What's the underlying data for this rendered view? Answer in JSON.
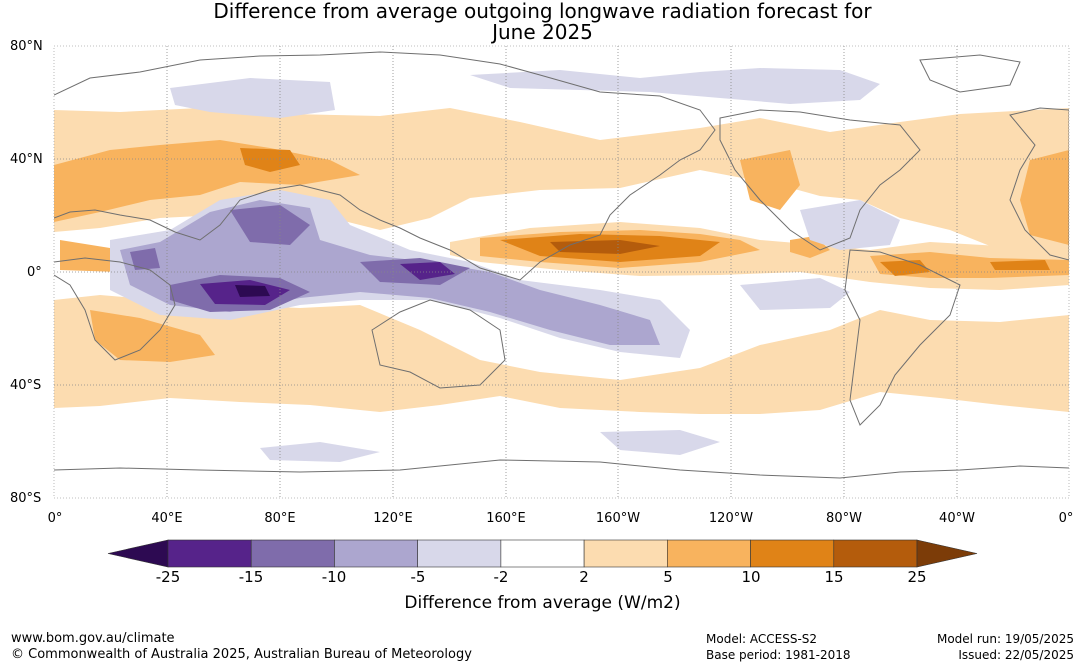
{
  "title_line1": "Difference from average outgoing longwave radiation forecast for",
  "title_line2": "June 2025",
  "lat_labels": [
    "80°N",
    "40°N",
    "0°",
    "40°S",
    "80°S"
  ],
  "lon_labels": [
    "0°",
    "40°E",
    "80°E",
    "120°E",
    "160°E",
    "160°W",
    "120°W",
    "80°W",
    "40°W",
    "0°"
  ],
  "colorbar": {
    "ticks": [
      "-25",
      "-15",
      "-10",
      "-5",
      "-2",
      "2",
      "5",
      "10",
      "15",
      "25"
    ],
    "colors": [
      "#2d0a52",
      "#56238a",
      "#7f6cab",
      "#aca6cf",
      "#d8d8ea",
      "#ffffff",
      "#fcdcb0",
      "#f8b35e",
      "#e08317",
      "#b45c0c",
      "#7c3c08"
    ],
    "label": "Difference from average (W/m2)"
  },
  "footer": {
    "website": "www.bom.gov.au/climate",
    "copyright": "© Commonwealth of Australia 2025, Australian Bureau of Meteorology",
    "model": "Model: ACCESS-S2",
    "base_period": "Base period: 1981-2018",
    "model_run": "Model run: 19/05/2025",
    "issued": "Issued: 22/05/2025"
  }
}
